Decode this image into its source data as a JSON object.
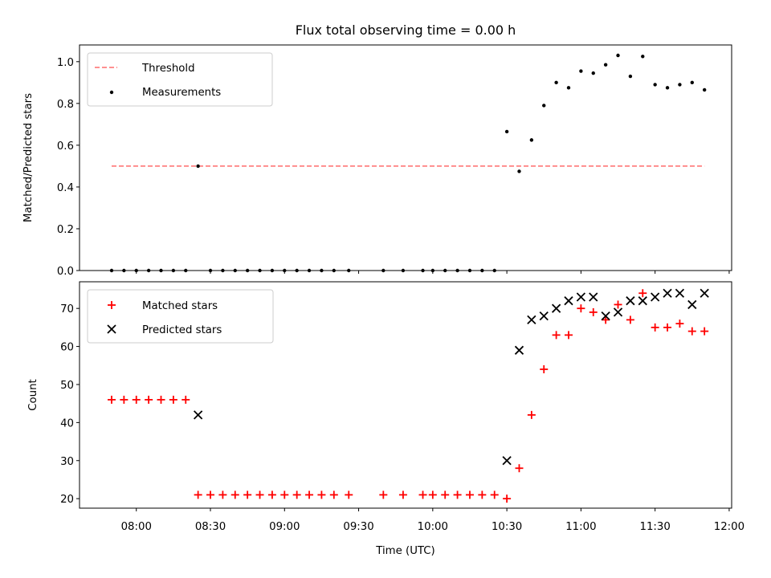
{
  "chart_data": [
    {
      "type": "scatter",
      "title": "Flux total observing time = 0.00 h",
      "xlabel": "",
      "ylabel": "Matched/Predicted stars",
      "xlim": [
        "07:37",
        "12:01"
      ],
      "ylim": [
        0,
        1.08
      ],
      "yticks": [
        0.0,
        0.2,
        0.4,
        0.6,
        0.8,
        1.0
      ],
      "ytick_labels": [
        "0.0",
        "0.2",
        "0.4",
        "0.6",
        "0.8",
        "1.0"
      ],
      "grid": false,
      "legend": {
        "placement": "upper left",
        "entries": [
          {
            "label": "Threshold",
            "style": "dashed-line",
            "color": "#ff8080"
          },
          {
            "label": "Measurements",
            "style": "dot",
            "color": "#000000"
          }
        ]
      },
      "threshold": {
        "name": "Threshold",
        "x": [
          "07:50",
          "11:50"
        ],
        "y": 0.5,
        "color": "#ff8080"
      },
      "series": [
        {
          "name": "Measurements",
          "color": "#000000",
          "points": [
            [
              "07:50",
              0
            ],
            [
              "07:55",
              0
            ],
            [
              "08:00",
              0
            ],
            [
              "08:05",
              0
            ],
            [
              "08:10",
              0
            ],
            [
              "08:15",
              0
            ],
            [
              "08:20",
              0
            ],
            [
              "08:25",
              0.5
            ],
            [
              "08:30",
              0
            ],
            [
              "08:35",
              0
            ],
            [
              "08:40",
              0
            ],
            [
              "08:45",
              0
            ],
            [
              "08:50",
              0
            ],
            [
              "08:55",
              0
            ],
            [
              "09:00",
              0
            ],
            [
              "09:05",
              0
            ],
            [
              "09:10",
              0
            ],
            [
              "09:15",
              0
            ],
            [
              "09:20",
              0
            ],
            [
              "09:26",
              0
            ],
            [
              "09:40",
              0
            ],
            [
              "09:48",
              0
            ],
            [
              "09:56",
              0
            ],
            [
              "10:00",
              0
            ],
            [
              "10:05",
              0
            ],
            [
              "10:10",
              0
            ],
            [
              "10:15",
              0
            ],
            [
              "10:20",
              0
            ],
            [
              "10:25",
              0
            ],
            [
              "10:30",
              0.665
            ],
            [
              "10:35",
              0.475
            ],
            [
              "10:40",
              0.625
            ],
            [
              "10:45",
              0.79
            ],
            [
              "10:50",
              0.9
            ],
            [
              "10:55",
              0.875
            ],
            [
              "11:00",
              0.955
            ],
            [
              "11:05",
              0.945
            ],
            [
              "11:10",
              0.985
            ],
            [
              "11:15",
              1.03
            ],
            [
              "11:20",
              0.93
            ],
            [
              "11:25",
              1.025
            ],
            [
              "11:30",
              0.89
            ],
            [
              "11:35",
              0.875
            ],
            [
              "11:40",
              0.89
            ],
            [
              "11:45",
              0.9
            ],
            [
              "11:50",
              0.865
            ]
          ]
        }
      ]
    },
    {
      "type": "scatter",
      "title": "",
      "xlabel": "Time (UTC)",
      "ylabel": "Count",
      "xlim": [
        "07:37",
        "12:01"
      ],
      "ylim": [
        17.5,
        77
      ],
      "yticks": [
        20,
        30,
        40,
        50,
        60,
        70
      ],
      "ytick_labels": [
        "20",
        "30",
        "40",
        "50",
        "60",
        "70"
      ],
      "xticks": [
        "08:00",
        "08:30",
        "09:00",
        "09:30",
        "10:00",
        "10:30",
        "11:00",
        "11:30",
        "12:00"
      ],
      "grid": false,
      "legend": {
        "placement": "upper left",
        "entries": [
          {
            "label": "Matched stars",
            "style": "plus",
            "color": "#ff0000"
          },
          {
            "label": "Predicted stars",
            "style": "x",
            "color": "#000000"
          }
        ]
      },
      "series": [
        {
          "name": "Matched stars",
          "marker": "plus",
          "color": "#ff0000",
          "points": [
            [
              "07:50",
              46
            ],
            [
              "07:55",
              46
            ],
            [
              "08:00",
              46
            ],
            [
              "08:05",
              46
            ],
            [
              "08:10",
              46
            ],
            [
              "08:15",
              46
            ],
            [
              "08:20",
              46
            ],
            [
              "08:25",
              21
            ],
            [
              "08:30",
              21
            ],
            [
              "08:35",
              21
            ],
            [
              "08:40",
              21
            ],
            [
              "08:45",
              21
            ],
            [
              "08:50",
              21
            ],
            [
              "08:55",
              21
            ],
            [
              "09:00",
              21
            ],
            [
              "09:05",
              21
            ],
            [
              "09:10",
              21
            ],
            [
              "09:15",
              21
            ],
            [
              "09:20",
              21
            ],
            [
              "09:26",
              21
            ],
            [
              "09:40",
              21
            ],
            [
              "09:48",
              21
            ],
            [
              "09:56",
              21
            ],
            [
              "10:00",
              21
            ],
            [
              "10:05",
              21
            ],
            [
              "10:10",
              21
            ],
            [
              "10:15",
              21
            ],
            [
              "10:20",
              21
            ],
            [
              "10:25",
              21
            ],
            [
              "10:30",
              20
            ],
            [
              "10:35",
              28
            ],
            [
              "10:40",
              42
            ],
            [
              "10:45",
              54
            ],
            [
              "10:50",
              63
            ],
            [
              "10:55",
              63
            ],
            [
              "11:00",
              70
            ],
            [
              "11:05",
              69
            ],
            [
              "11:10",
              67
            ],
            [
              "11:15",
              71
            ],
            [
              "11:20",
              67
            ],
            [
              "11:25",
              74
            ],
            [
              "11:30",
              65
            ],
            [
              "11:35",
              65
            ],
            [
              "11:40",
              66
            ],
            [
              "11:45",
              64
            ],
            [
              "11:50",
              64
            ]
          ]
        },
        {
          "name": "Predicted stars",
          "marker": "x",
          "color": "#000000",
          "points": [
            [
              "08:25",
              42
            ],
            [
              "10:30",
              30
            ],
            [
              "10:35",
              59
            ],
            [
              "10:40",
              67
            ],
            [
              "10:45",
              68
            ],
            [
              "10:50",
              70
            ],
            [
              "10:55",
              72
            ],
            [
              "11:00",
              73
            ],
            [
              "11:05",
              73
            ],
            [
              "11:10",
              68
            ],
            [
              "11:15",
              69
            ],
            [
              "11:20",
              72
            ],
            [
              "11:25",
              72
            ],
            [
              "11:30",
              73
            ],
            [
              "11:35",
              74
            ],
            [
              "11:40",
              74
            ],
            [
              "11:45",
              71
            ],
            [
              "11:50",
              74
            ]
          ]
        }
      ]
    }
  ]
}
